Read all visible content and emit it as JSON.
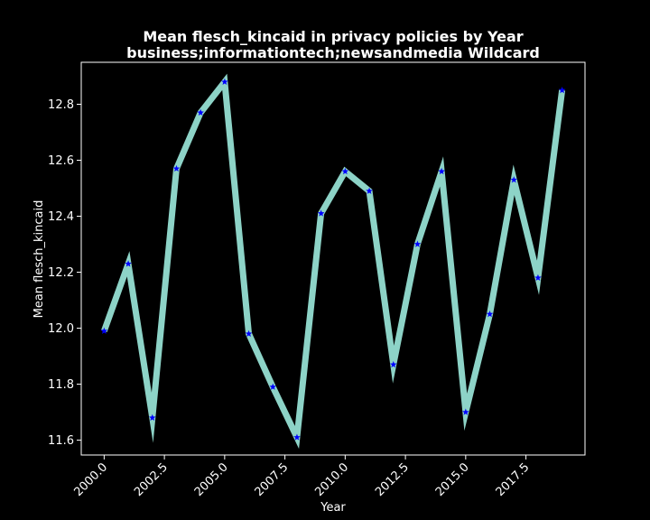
{
  "chart_data": {
    "type": "line",
    "title": "Mean flesch_kincaid in privacy policies by Year",
    "subtitle": "business;informationtech;newsandmedia Wildcard",
    "xlabel": "Year",
    "ylabel": "Mean flesch_kincaid",
    "x": [
      2000,
      2001,
      2002,
      2003,
      2004,
      2005,
      2006,
      2007,
      2008,
      2009,
      2010,
      2011,
      2012,
      2013,
      2014,
      2015,
      2016,
      2017,
      2018,
      2019
    ],
    "series": [
      {
        "values": [
          11.99,
          12.23,
          11.68,
          12.57,
          12.77,
          12.88,
          11.98,
          11.79,
          11.61,
          12.41,
          12.56,
          12.49,
          11.87,
          12.3,
          12.56,
          11.7,
          12.05,
          12.53,
          12.18,
          12.85
        ],
        "line_color": "#8dd3c7",
        "marker_color": "#0000ff",
        "marker": "star"
      }
    ],
    "xlim": [
      1999.05,
      2019.95
    ],
    "ylim": [
      11.547,
      12.95
    ],
    "xticks": [
      2000.0,
      2002.5,
      2005.0,
      2007.5,
      2010.0,
      2012.5,
      2015.0,
      2017.5
    ],
    "xtick_labels": [
      "2000.0",
      "2002.5",
      "2005.0",
      "2007.5",
      "2010.0",
      "2012.5",
      "2015.0",
      "2017.5"
    ],
    "yticks": [
      11.6,
      11.8,
      12.0,
      12.2,
      12.4,
      12.6,
      12.8
    ],
    "ytick_labels": [
      "11.6",
      "11.8",
      "12.0",
      "12.2",
      "12.4",
      "12.6",
      "12.8"
    ],
    "grid": false,
    "legend": "none",
    "background": "#000000",
    "axis_color": "#ffffff"
  }
}
